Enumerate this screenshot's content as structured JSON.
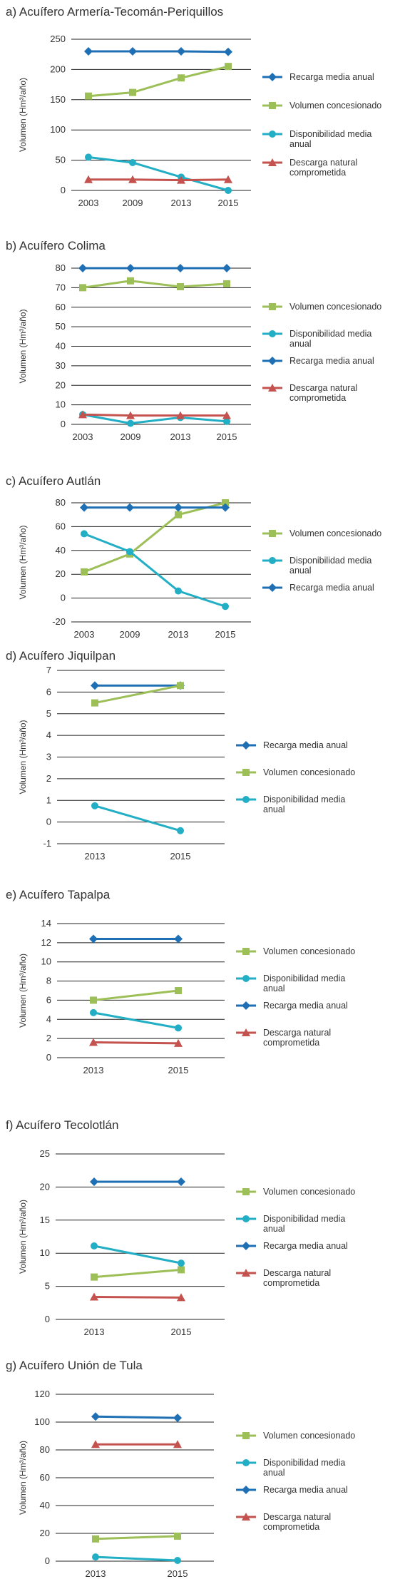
{
  "colors": {
    "recarga": "#1f6fb4",
    "volumen": "#9dbf58",
    "disponibilidad": "#22aec4",
    "descarga": "#c4524e",
    "grid": "#222222",
    "text": "#333333"
  },
  "chart_data": [
    {
      "type": "line",
      "title": "a) Acuífero Armería-Tecomán-Periquillos",
      "ylabel": "Volumen (Hm³/año)",
      "categories": [
        "2003",
        "2009",
        "2013",
        "2015"
      ],
      "ylim": [
        0,
        250
      ],
      "yticks": [
        "0",
        "50",
        "100",
        "150",
        "200",
        "250"
      ],
      "series": [
        {
          "name": "Recarga media anual",
          "key": "recarga",
          "marker": "diamond",
          "values": [
            230,
            230,
            230,
            229
          ]
        },
        {
          "name": "Volumen concesionado",
          "key": "volumen",
          "marker": "square",
          "values": [
            156,
            162,
            186,
            205
          ]
        },
        {
          "name": "Disponibilidad media anual",
          "key": "disponibilidad",
          "marker": "circle",
          "values": [
            55,
            46,
            22,
            0
          ]
        },
        {
          "name": "Descarga natural comprometida",
          "key": "descarga",
          "marker": "triangle",
          "values": [
            18,
            18,
            17,
            18
          ]
        }
      ],
      "legend": [
        "Recarga media anual",
        "Volumen concesionado",
        "Disponibilidad media anual",
        "Descarga natural comprometida"
      ]
    },
    {
      "type": "line",
      "title": "b) Acuífero Colima",
      "ylabel": "Volumen (Hm³/año)",
      "categories": [
        "2003",
        "2009",
        "2013",
        "2015"
      ],
      "ylim": [
        0,
        80
      ],
      "yticks": [
        "0",
        "10",
        "20",
        "30",
        "40",
        "50",
        "60",
        "70",
        "80"
      ],
      "series": [
        {
          "name": "Volumen concesionado",
          "key": "volumen",
          "marker": "square",
          "values": [
            70,
            73.5,
            70.5,
            72
          ]
        },
        {
          "name": "Disponibilidad media anual",
          "key": "disponibilidad",
          "marker": "circle",
          "values": [
            5,
            0.5,
            3.5,
            1.5
          ]
        },
        {
          "name": "Recarga media anual",
          "key": "recarga",
          "marker": "diamond",
          "values": [
            80,
            80,
            80,
            80
          ]
        },
        {
          "name": "Descarga natural comprometida",
          "key": "descarga",
          "marker": "triangle",
          "values": [
            5,
            4.5,
            4.5,
            4.5
          ]
        }
      ],
      "legend": [
        "Volumen concesionado",
        "Disponibilidad media anual",
        "Recarga media anual",
        "Descarga natural comprometida"
      ]
    },
    {
      "type": "line",
      "title": "c) Acuífero Autlán",
      "ylabel": "Volumen (Hm³/año)",
      "categories": [
        "2003",
        "2009",
        "2013",
        "2015"
      ],
      "ylim": [
        -20,
        80
      ],
      "yticks": [
        "-20",
        "0",
        "20",
        "40",
        "60",
        "80"
      ],
      "series": [
        {
          "name": "Volumen concesionado",
          "key": "volumen",
          "marker": "square",
          "values": [
            22,
            37,
            70,
            80
          ]
        },
        {
          "name": "Disponibilidad media anual",
          "key": "disponibilidad",
          "marker": "circle",
          "values": [
            54,
            39,
            6,
            -7
          ]
        },
        {
          "name": "Recarga media anual",
          "key": "recarga",
          "marker": "diamond",
          "values": [
            76,
            76,
            76,
            76
          ]
        }
      ],
      "legend": [
        "Volumen concesionado",
        "Disponibilidad media anual",
        "Recarga media anual"
      ]
    },
    {
      "type": "line",
      "title": "d) Acuífero Jiquilpan",
      "ylabel": "Volumen (Hm³/año)",
      "categories": [
        "2013",
        "2015"
      ],
      "ylim": [
        -1,
        7
      ],
      "yticks": [
        "-1",
        "0",
        "1",
        "2",
        "3",
        "4",
        "5",
        "6",
        "7"
      ],
      "series": [
        {
          "name": "Recarga media anual",
          "key": "recarga",
          "marker": "diamond",
          "values": [
            6.3,
            6.3
          ]
        },
        {
          "name": "Volumen concesionado",
          "key": "volumen",
          "marker": "square",
          "values": [
            5.5,
            6.3
          ]
        },
        {
          "name": "Disponibilidad media anual",
          "key": "disponibilidad",
          "marker": "circle",
          "values": [
            0.75,
            -0.4
          ]
        }
      ],
      "legend": [
        "Recarga media anual",
        "Volumen concesionado",
        "Disponibilidad media anual"
      ]
    },
    {
      "type": "line",
      "title": "e) Acuífero Tapalpa",
      "ylabel": "Volumen (Hm³/año)",
      "categories": [
        "2013",
        "2015"
      ],
      "ylim": [
        0,
        14
      ],
      "yticks": [
        "0",
        "2",
        "4",
        "6",
        "8",
        "10",
        "12",
        "14"
      ],
      "series": [
        {
          "name": "Volumen concesionado",
          "key": "volumen",
          "marker": "square",
          "values": [
            6,
            7
          ]
        },
        {
          "name": "Disponibilidad media anual",
          "key": "disponibilidad",
          "marker": "circle",
          "values": [
            4.7,
            3.1
          ]
        },
        {
          "name": "Recarga media anual",
          "key": "recarga",
          "marker": "diamond",
          "values": [
            12.4,
            12.4
          ]
        },
        {
          "name": "Descarga natural comprometida",
          "key": "descarga",
          "marker": "triangle",
          "values": [
            1.6,
            1.5
          ]
        }
      ],
      "legend": [
        "Volumen concesionado",
        "Disponibilidad media anual",
        "Recarga media anual",
        "Descarga natural comprometida"
      ]
    },
    {
      "type": "line",
      "title": "f) Acuífero Tecolotlán",
      "ylabel": "Volumen (Hm³/año)",
      "categories": [
        "2013",
        "2015"
      ],
      "ylim": [
        0,
        25
      ],
      "yticks": [
        "0",
        "5",
        "10",
        "15",
        "20",
        "25"
      ],
      "series": [
        {
          "name": "Volumen concesionado",
          "key": "volumen",
          "marker": "square",
          "values": [
            6.4,
            7.5
          ]
        },
        {
          "name": "Disponibilidad media anual",
          "key": "disponibilidad",
          "marker": "circle",
          "values": [
            11.1,
            8.5
          ]
        },
        {
          "name": "Recarga media anual",
          "key": "recarga",
          "marker": "diamond",
          "values": [
            20.8,
            20.8
          ]
        },
        {
          "name": "Descarga natural comprometida",
          "key": "descarga",
          "marker": "triangle",
          "values": [
            3.4,
            3.3
          ]
        }
      ],
      "legend": [
        "Volumen concesionado",
        "Disponibilidad media anual",
        "Recarga media anual",
        "Descarga natural comprometida"
      ]
    },
    {
      "type": "line",
      "title": "g) Acuífero Unión de Tula",
      "ylabel": "Volumen (Hm³/año)",
      "categories": [
        "2013",
        "2015"
      ],
      "ylim": [
        0,
        120
      ],
      "yticks": [
        "0",
        "20",
        "40",
        "60",
        "80",
        "100",
        "120"
      ],
      "series": [
        {
          "name": "Volumen concesionado",
          "key": "volumen",
          "marker": "square",
          "values": [
            16,
            18
          ]
        },
        {
          "name": "Disponibilidad media anual",
          "key": "disponibilidad",
          "marker": "circle",
          "values": [
            3,
            0.5
          ]
        },
        {
          "name": "Recarga media anual",
          "key": "recarga",
          "marker": "diamond",
          "values": [
            104,
            103
          ]
        },
        {
          "name": "Descarga natural comprometida",
          "key": "descarga",
          "marker": "triangle",
          "values": [
            84,
            84
          ]
        }
      ],
      "legend": [
        "Volumen concesionado",
        "Disponibilidad media anual",
        "Recarga media anual",
        "Descarga natural comprometida"
      ]
    }
  ]
}
